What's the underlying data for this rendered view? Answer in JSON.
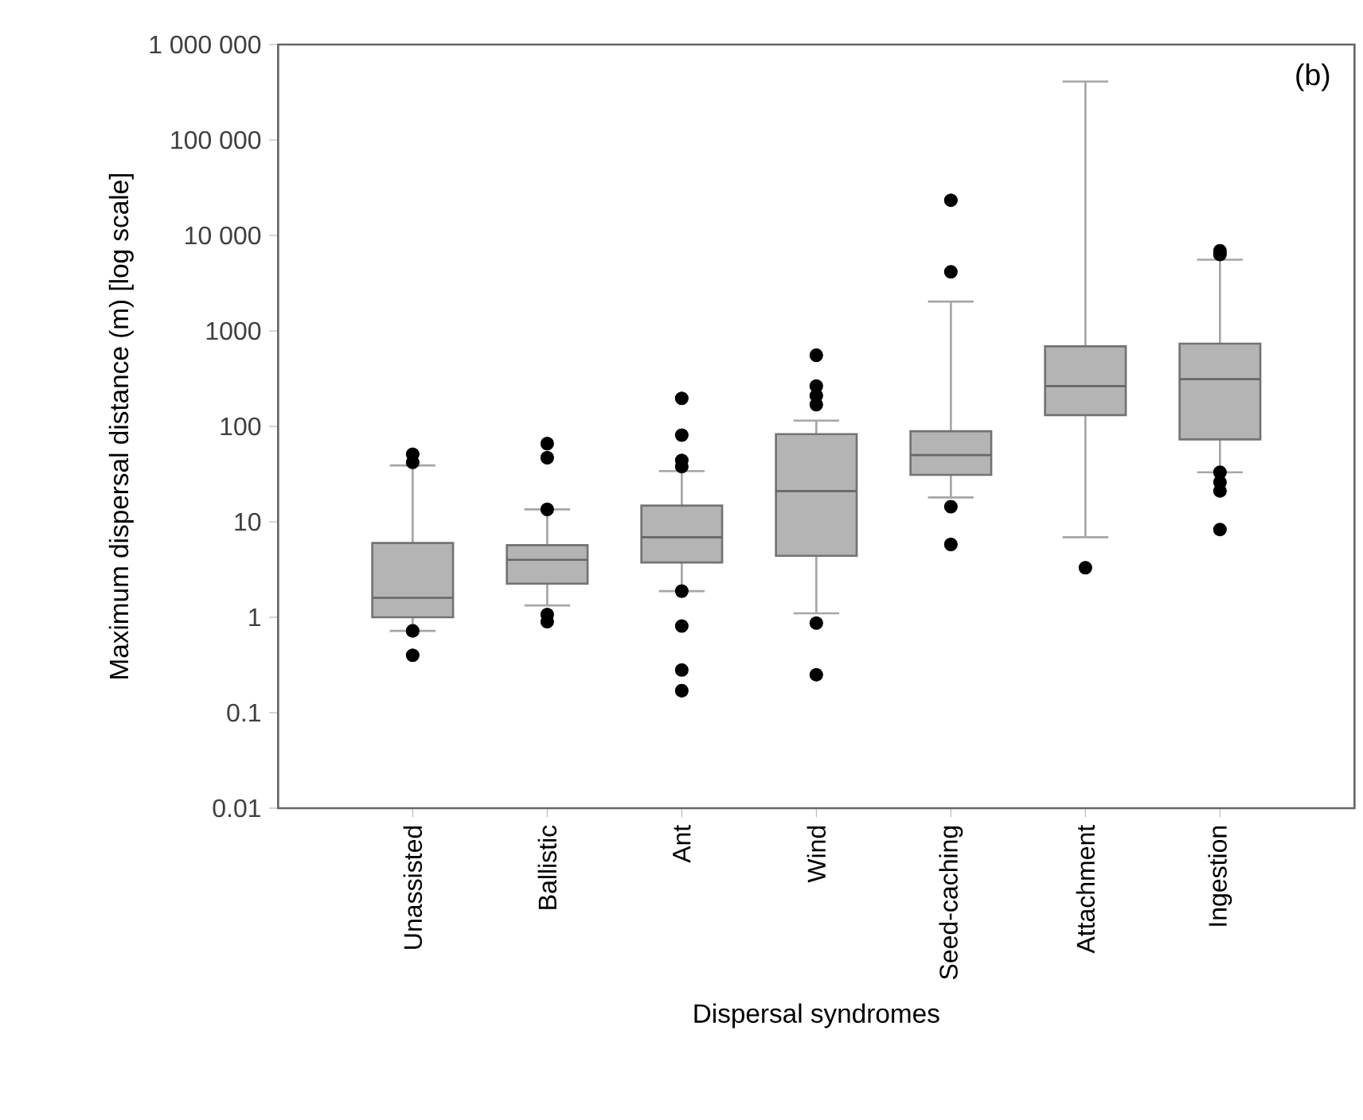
{
  "chart_data": {
    "type": "box",
    "xlabel": "Dispersal syndromes",
    "ylabel": "Maximum dispersal distance (m) [log scale]",
    "annotations": [
      "(b)"
    ],
    "categories": [
      "Unassisted",
      "Ballistic",
      "Ant",
      "Wind",
      "Seed-caching",
      "Attachment",
      "Ingestion"
    ],
    "color": "#b4b4b4",
    "log": "y",
    "marker": "circle",
    "ylim": [
      0.01,
      1000000
    ],
    "yticks": [
      0.01,
      0.1,
      1,
      10,
      100,
      1000,
      {
        "value": 10000,
        "label": "10 000"
      },
      {
        "value": 100000,
        "label": "100 000"
      },
      {
        "value": 1000000,
        "label": "1 000 000"
      }
    ],
    "boxes": [
      {
        "low": 0.72,
        "q1": 1.0,
        "median": 1.6,
        "q3": 6,
        "high": 39,
        "outliers": [
          51,
          42,
          0.72,
          0.4
        ]
      },
      {
        "low": 1.33,
        "q1": 2.25,
        "median": 4.0,
        "q3": 5.7,
        "high": 13.5,
        "outliers": [
          66,
          47,
          13.5,
          1.07,
          0.9
        ]
      },
      {
        "low": 1.88,
        "q1": 3.75,
        "median": 6.9,
        "q3": 14.8,
        "high": 34,
        "outliers": [
          197,
          81,
          44,
          38,
          1.88,
          0.81,
          0.28,
          0.17
        ]
      },
      {
        "low": 1.1,
        "q1": 4.4,
        "median": 21,
        "q3": 83,
        "high": 115,
        "outliers": [
          556,
          265,
          210,
          169,
          0.87,
          0.25
        ]
      },
      {
        "low": 18,
        "q1": 31,
        "median": 50,
        "q3": 89,
        "high": 2030,
        "outliers": [
          23400,
          4160,
          14.4,
          5.8
        ]
      },
      {
        "low": 6.9,
        "q1": 131,
        "median": 264,
        "q3": 690,
        "high": 410000,
        "outliers": [
          3.3
        ]
      },
      {
        "low": 33,
        "q1": 73,
        "median": 312,
        "q3": 736,
        "high": 5570,
        "outliers": [
          6900,
          6300,
          33,
          26,
          21,
          8.3
        ]
      }
    ]
  }
}
